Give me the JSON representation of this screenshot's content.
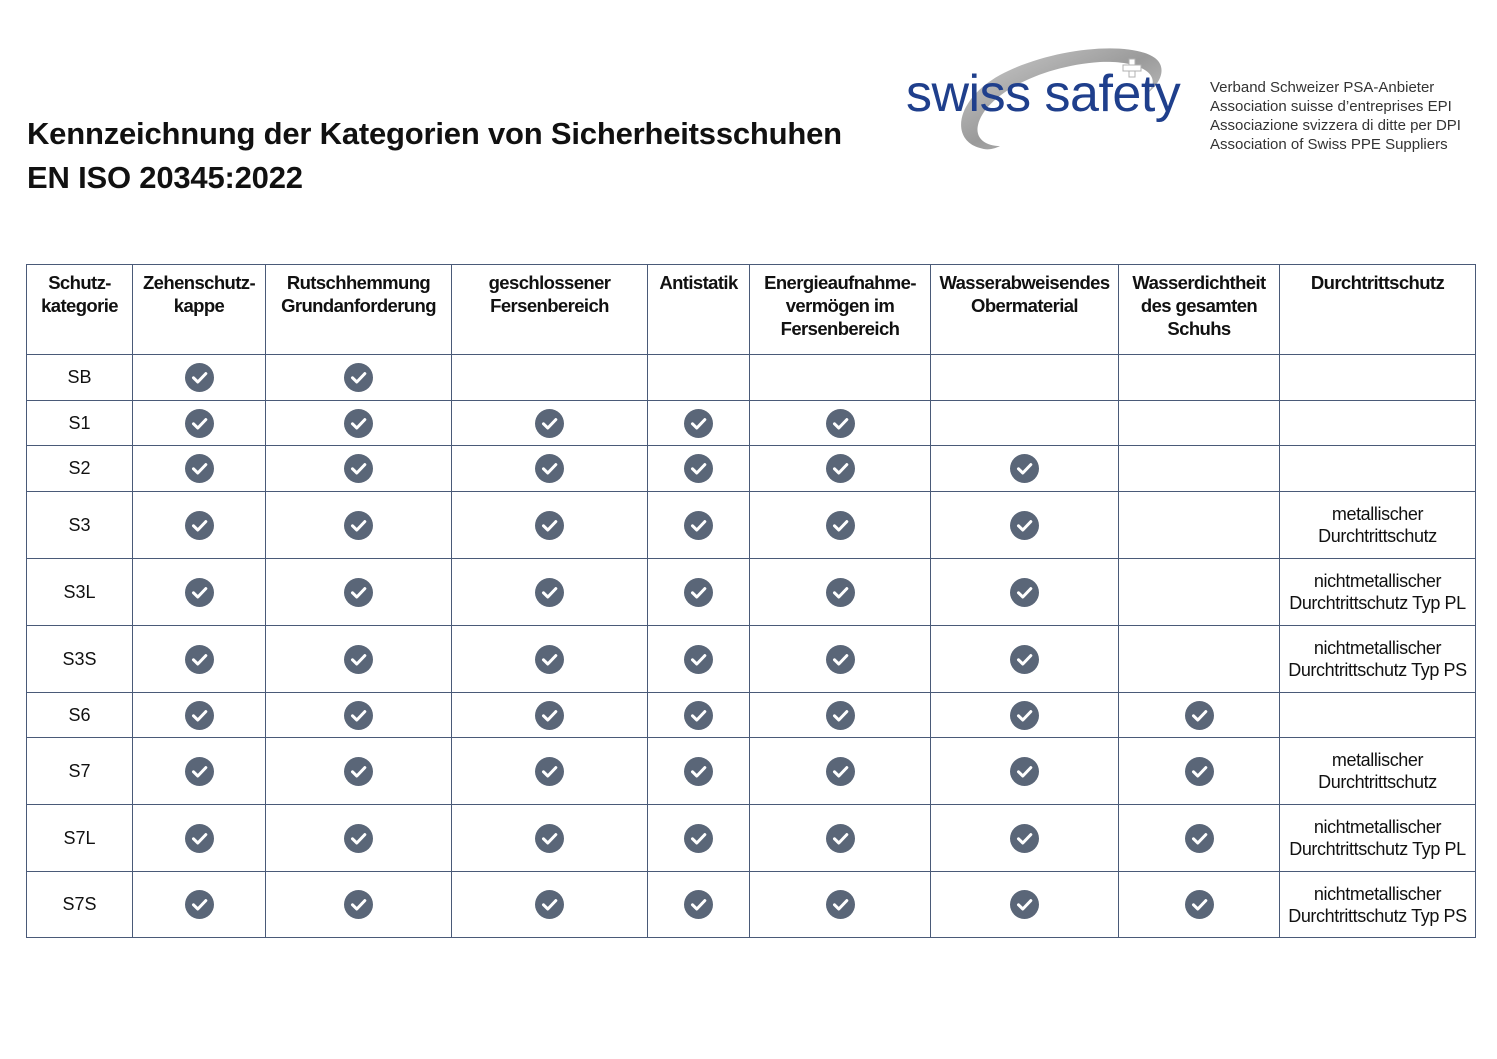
{
  "title": {
    "line1": "Kennzeichnung der Kategorien von Sicherheitsschuhen",
    "line2": "EN ISO 20345:2022"
  },
  "logo": {
    "brand": "swiss safety",
    "association": [
      "Verband Schweizer PSA-Anbieter",
      "Association suisse d’entreprises EPI",
      "Associazione svizzera di ditte per DPI",
      "Association of Swiss PPE Suppliers"
    ]
  },
  "table": {
    "headers": [
      [
        "Schutz-",
        "kategorie"
      ],
      [
        "Zehenschutz-",
        "kappe"
      ],
      [
        "Rutschhemmung",
        "Grundanforderung"
      ],
      [
        "geschlossener",
        "Fersenbereich"
      ],
      [
        "Antistatik"
      ],
      [
        "Energieaufnahme-",
        "vermögen im",
        "Fersenbereich"
      ],
      [
        "Wasserabweisendes",
        "Obermaterial"
      ],
      [
        "Wasserdichtheit",
        "des gesamten",
        "Schuhs"
      ],
      [
        "Durchtrittschutz"
      ]
    ],
    "rows": [
      {
        "category": "SB",
        "checks": [
          true,
          true,
          false,
          false,
          false,
          false,
          false
        ],
        "puncture": []
      },
      {
        "category": "S1",
        "checks": [
          true,
          true,
          true,
          true,
          true,
          false,
          false
        ],
        "puncture": []
      },
      {
        "category": "S2",
        "checks": [
          true,
          true,
          true,
          true,
          true,
          true,
          false
        ],
        "puncture": []
      },
      {
        "category": "S3",
        "checks": [
          true,
          true,
          true,
          true,
          true,
          true,
          false
        ],
        "puncture": [
          "metallischer",
          "Durchtrittschutz"
        ]
      },
      {
        "category": "S3L",
        "checks": [
          true,
          true,
          true,
          true,
          true,
          true,
          false
        ],
        "puncture": [
          "nichtmetallischer",
          "Durchtrittschutz Typ PL"
        ]
      },
      {
        "category": "S3S",
        "checks": [
          true,
          true,
          true,
          true,
          true,
          true,
          false
        ],
        "puncture": [
          "nichtmetallischer",
          "Durchtrittschutz Typ PS"
        ]
      },
      {
        "category": "S6",
        "checks": [
          true,
          true,
          true,
          true,
          true,
          true,
          true
        ],
        "puncture": []
      },
      {
        "category": "S7",
        "checks": [
          true,
          true,
          true,
          true,
          true,
          true,
          true
        ],
        "puncture": [
          "metallischer",
          "Durchtrittschutz"
        ]
      },
      {
        "category": "S7L",
        "checks": [
          true,
          true,
          true,
          true,
          true,
          true,
          true
        ],
        "puncture": [
          "nichtmetallischer",
          "Durchtrittschutz Typ PL"
        ]
      },
      {
        "category": "S7S",
        "checks": [
          true,
          true,
          true,
          true,
          true,
          true,
          true
        ],
        "puncture": [
          "nichtmetallischer",
          "Durchtrittschutz Typ PS"
        ]
      }
    ]
  },
  "colors": {
    "check_fill": "#5a6678",
    "border": "#4a5a78",
    "brand_blue": "#1f3f8c"
  },
  "icons": {
    "check": "check-circle-icon",
    "logo_swirl": "swirl-logo-icon",
    "logo_cross": "swiss-cross-icon"
  }
}
